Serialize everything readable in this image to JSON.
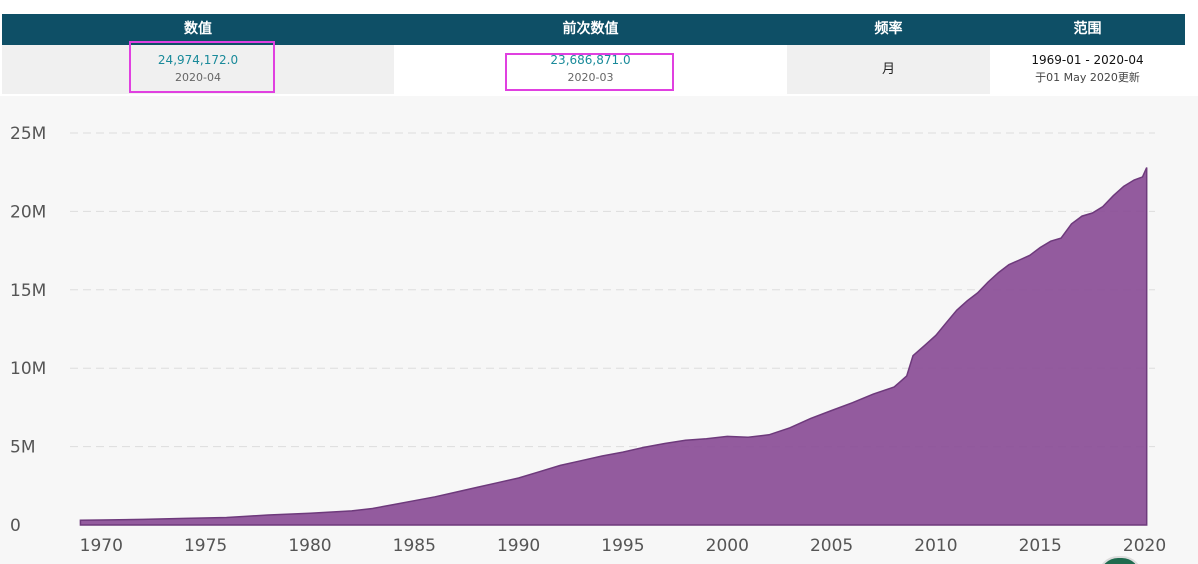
{
  "header": {
    "columns": [
      "数值",
      "前次数值",
      "频率",
      "范围"
    ]
  },
  "row": {
    "current_value": "24,974,172.0",
    "current_date": "2020-04",
    "previous_value": "23,686,871.0",
    "previous_date": "2020-03",
    "frequency": "月",
    "range": "1969-01 - 2020-04",
    "updated": "于01 May 2020更新"
  },
  "colors": {
    "header_bg": "#0e4f66",
    "value_text": "#1a8a9a",
    "highlight": "#e040e0",
    "area_fill": "#8a4d96",
    "area_stroke": "#6e3a7c",
    "grid": "#dddddd"
  },
  "chart_data": {
    "type": "area",
    "title": "",
    "xlabel": "",
    "ylabel": "",
    "xlim": [
      1968.5,
      2020.5
    ],
    "ylim": [
      0,
      25000000
    ],
    "grid": "horizontal dashed",
    "x_ticks": [
      "1970",
      "1975",
      "1980",
      "1985",
      "1990",
      "1995",
      "2000",
      "2005",
      "2010",
      "2015",
      "2020"
    ],
    "y_ticks": [
      "0",
      "5M",
      "10M",
      "15M",
      "20M",
      "25M"
    ],
    "series": [
      {
        "points": [
          [
            1969.0,
            300000
          ],
          [
            1970.0,
            320000
          ],
          [
            1972.0,
            360000
          ],
          [
            1974.0,
            420000
          ],
          [
            1976.0,
            480000
          ],
          [
            1977.0,
            560000
          ],
          [
            1978.0,
            640000
          ],
          [
            1980.0,
            750000
          ],
          [
            1982.0,
            900000
          ],
          [
            1983.0,
            1050000
          ],
          [
            1984.0,
            1300000
          ],
          [
            1985.0,
            1550000
          ],
          [
            1986.0,
            1800000
          ],
          [
            1987.0,
            2100000
          ],
          [
            1988.0,
            2400000
          ],
          [
            1989.0,
            2700000
          ],
          [
            1990.0,
            3000000
          ],
          [
            1991.0,
            3400000
          ],
          [
            1992.0,
            3800000
          ],
          [
            1993.0,
            4100000
          ],
          [
            1994.0,
            4400000
          ],
          [
            1995.0,
            4650000
          ],
          [
            1996.0,
            4950000
          ],
          [
            1997.0,
            5200000
          ],
          [
            1998.0,
            5400000
          ],
          [
            1999.0,
            5500000
          ],
          [
            2000.0,
            5650000
          ],
          [
            2001.0,
            5600000
          ],
          [
            2002.0,
            5750000
          ],
          [
            2003.0,
            6200000
          ],
          [
            2004.0,
            6800000
          ],
          [
            2005.0,
            7300000
          ],
          [
            2006.0,
            7800000
          ],
          [
            2007.0,
            8350000
          ],
          [
            2008.0,
            8800000
          ],
          [
            2008.6,
            9500000
          ],
          [
            2008.9,
            10800000
          ],
          [
            2009.5,
            11500000
          ],
          [
            2010.0,
            12100000
          ],
          [
            2010.5,
            12900000
          ],
          [
            2011.0,
            13700000
          ],
          [
            2011.5,
            14300000
          ],
          [
            2012.0,
            14800000
          ],
          [
            2012.5,
            15500000
          ],
          [
            2013.0,
            16100000
          ],
          [
            2013.5,
            16600000
          ],
          [
            2014.0,
            16900000
          ],
          [
            2014.5,
            17200000
          ],
          [
            2015.0,
            17700000
          ],
          [
            2015.5,
            18100000
          ],
          [
            2016.0,
            18300000
          ],
          [
            2016.5,
            19200000
          ],
          [
            2017.0,
            19700000
          ],
          [
            2017.5,
            19900000
          ],
          [
            2018.0,
            20300000
          ],
          [
            2018.5,
            21000000
          ],
          [
            2019.0,
            21600000
          ],
          [
            2019.5,
            22000000
          ],
          [
            2019.9,
            22200000
          ],
          [
            2020.1,
            22800000
          ]
        ]
      }
    ]
  }
}
